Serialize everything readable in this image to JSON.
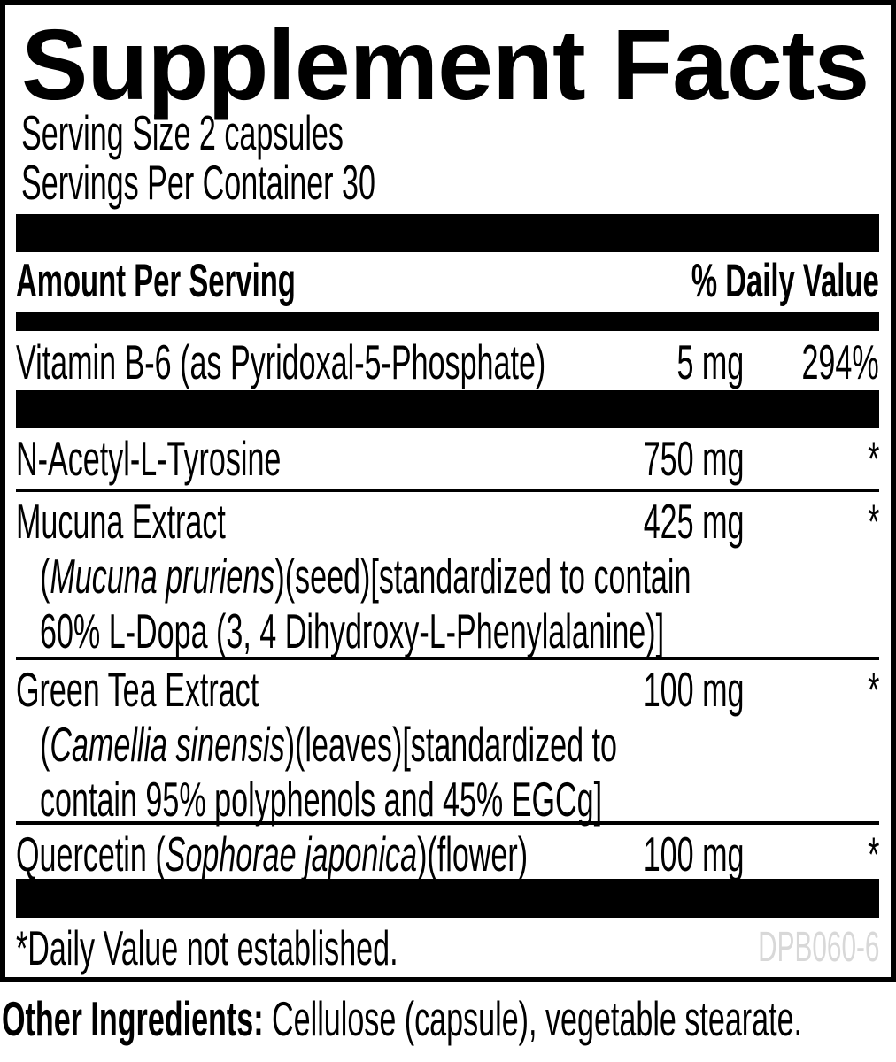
{
  "title": "Supplement Facts",
  "serving_size": "Serving Size 2 capsules",
  "servings_per_container": "Servings Per Container 30",
  "header": {
    "amount_col": "Amount Per Serving",
    "dv_col": "% Daily Value"
  },
  "ingredients": [
    {
      "name_parts": [
        {
          "t": "Vitamin B-6 (as Pyridoxal-5-Phosphate)",
          "i": false
        }
      ],
      "amount": "5 mg",
      "daily_value": "294%",
      "desc_lines": []
    },
    {
      "name_parts": [
        {
          "t": "N-Acetyl-L-Tyrosine",
          "i": false
        }
      ],
      "amount": "750 mg",
      "daily_value": "*",
      "desc_lines": []
    },
    {
      "name_parts": [
        {
          "t": "Mucuna Extract",
          "i": false
        }
      ],
      "amount": "425 mg",
      "daily_value": "*",
      "desc_lines": [
        [
          {
            "t": "(",
            "i": false
          },
          {
            "t": "Mucuna pruriens",
            "i": true
          },
          {
            "t": ")(seed)[standardized to contain",
            "i": false
          }
        ],
        [
          {
            "t": "60% L-Dopa (3, 4 Dihydroxy-L-Phenylalanine)]",
            "i": false
          }
        ]
      ]
    },
    {
      "name_parts": [
        {
          "t": "Green Tea Extract",
          "i": false
        }
      ],
      "amount": "100 mg",
      "daily_value": "*",
      "desc_lines": [
        [
          {
            "t": "(",
            "i": false
          },
          {
            "t": "Camellia sinensis",
            "i": true
          },
          {
            "t": ")(leaves)[standardized to",
            "i": false
          }
        ],
        [
          {
            "t": "contain 95% polyphenols and 45% EGCg]",
            "i": false
          }
        ]
      ]
    },
    {
      "name_parts": [
        {
          "t": "Quercetin (",
          "i": false
        },
        {
          "t": "Sophorae japonica",
          "i": true
        },
        {
          "t": ")(flower)",
          "i": false
        }
      ],
      "amount": "100 mg",
      "daily_value": "*",
      "desc_lines": []
    }
  ],
  "footnote": "*Daily Value not established.",
  "product_code": "DPB060-6",
  "other_ingredients": {
    "label": "Other Ingredients:",
    "text": " Cellulose (capsule), vegetable stearate."
  },
  "colors": {
    "text": "#000000",
    "background": "#ffffff",
    "bars": "#000000",
    "product_code_gray": "#d8d8d8"
  }
}
